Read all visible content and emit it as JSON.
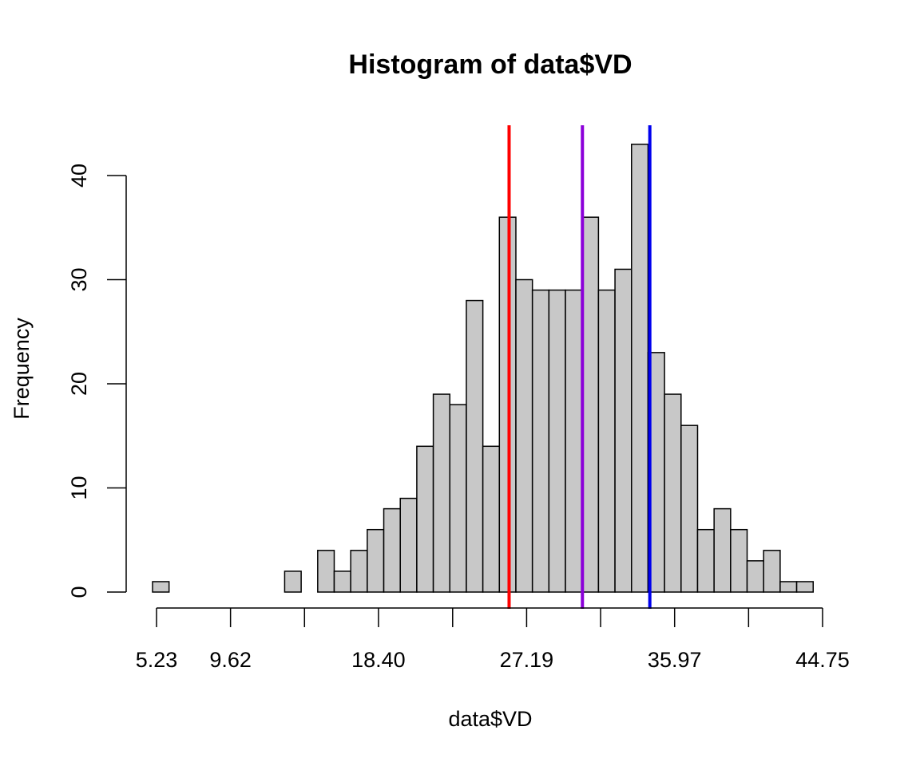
{
  "chart_data": {
    "type": "bar",
    "title": "Histogram of data$VD",
    "xlabel": "data$VD",
    "ylabel": "Frequency",
    "xlim": [
      5.23,
      44.75
    ],
    "ylim": [
      0,
      43
    ],
    "bin_width": 0.98,
    "bins_start": 5.23,
    "counts": [
      1,
      0,
      0,
      0,
      0,
      0,
      0,
      0,
      2,
      0,
      4,
      2,
      4,
      6,
      8,
      9,
      14,
      19,
      18,
      28,
      14,
      36,
      30,
      29,
      29,
      29,
      36,
      29,
      31,
      43,
      23,
      19,
      16,
      6,
      8,
      6,
      3,
      4,
      1,
      1
    ],
    "x_ticks": [
      5.23,
      9.62,
      14.01,
      18.4,
      22.8,
      27.19,
      31.58,
      35.97,
      40.36,
      44.75
    ],
    "x_tick_labels": [
      "5.23",
      "9.62",
      "",
      "18.40",
      "",
      "27.19",
      "",
      "35.97",
      "",
      "44.75"
    ],
    "y_ticks": [
      0,
      10,
      20,
      30,
      40
    ],
    "y_tick_labels": [
      "0",
      "10",
      "20",
      "30",
      "40"
    ],
    "vlines": [
      {
        "x": 26.15,
        "color": "#ff0000"
      },
      {
        "x": 30.5,
        "color": "#8b00d9"
      },
      {
        "x": 34.5,
        "color": "#0000ee"
      }
    ],
    "grid": false,
    "legend": "none"
  }
}
